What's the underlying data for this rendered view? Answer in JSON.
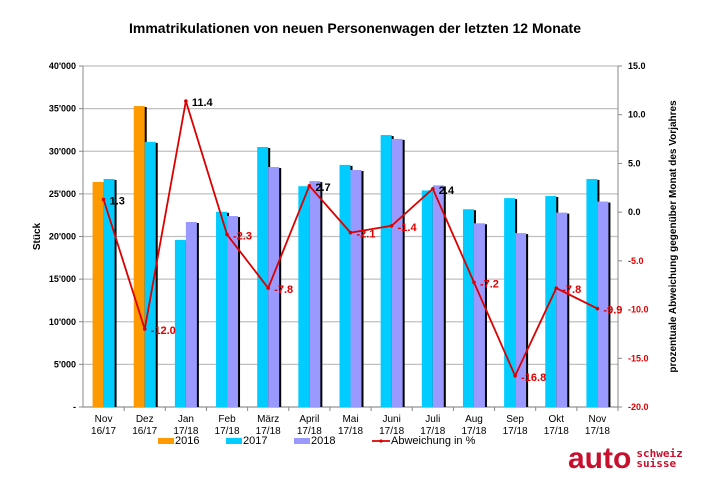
{
  "chart_data": {
    "type": "bar",
    "title": "Immatrikulationen von neuen Personenwagen der letzten 12 Monate",
    "ylabel": "Stück",
    "y2label": "prozentuale Abweichung gegenüber Monat des Vorjahres",
    "ylim": [
      0,
      40000
    ],
    "y2lim": [
      -20,
      15
    ],
    "yticks": [
      "-",
      "5'000",
      "10'000",
      "15'000",
      "20'000",
      "25'000",
      "30'000",
      "35'000",
      "40'000"
    ],
    "y2ticks": [
      "-20.0",
      "-15.0",
      "-10.0",
      "-5.0",
      "0.0",
      "5.0",
      "10.0",
      "15.0"
    ],
    "grid": true,
    "legend_placement": "bottom",
    "categories": [
      [
        "Nov",
        "16/17"
      ],
      [
        "Dez",
        "16/17"
      ],
      [
        "Jan",
        "17/18"
      ],
      [
        "Feb",
        "17/18"
      ],
      [
        "März",
        "17/18"
      ],
      [
        "April",
        "17/18"
      ],
      [
        "Mai",
        "17/18"
      ],
      [
        "Juni",
        "17/18"
      ],
      [
        "Juli",
        "17/18"
      ],
      [
        "Aug",
        "17/18"
      ],
      [
        "Sep",
        "17/18"
      ],
      [
        "Okt",
        "17/18"
      ],
      [
        "Nov",
        "17/18"
      ]
    ],
    "series": [
      {
        "name": "2016",
        "color": "#ff9900",
        "values": [
          26400,
          35300,
          null,
          null,
          null,
          null,
          null,
          null,
          null,
          null,
          null,
          null,
          null
        ]
      },
      {
        "name": "2017",
        "color": "#00ccff",
        "values": [
          26750,
          31100,
          19600,
          22900,
          30500,
          25900,
          28400,
          31900,
          25400,
          23200,
          24500,
          24750,
          26750
        ]
      },
      {
        "name": "2018",
        "color": "#9999ff",
        "values": [
          null,
          null,
          21700,
          22400,
          28150,
          26500,
          27800,
          31450,
          26000,
          21550,
          20400,
          22800,
          24100
        ]
      }
    ],
    "line": {
      "name": "Abweichung in %",
      "color": "#dd0000",
      "axis": "right",
      "values": [
        1.3,
        -12.0,
        11.4,
        -2.3,
        -7.8,
        2.7,
        -2.1,
        -1.4,
        2.4,
        -7.2,
        -16.8,
        -7.8,
        -9.9
      ],
      "labels": [
        "1.3",
        "-12.0",
        "11.4",
        "-2.3",
        "-7.8",
        "2.7",
        "-2.1",
        "-1.4",
        "2.4",
        "-7.2",
        "-16.8",
        "-7.8",
        "-9.9"
      ]
    }
  },
  "logo": {
    "main": "auto",
    "line1": "schweiz",
    "line2": "suisse",
    "color": "#c8102e"
  }
}
